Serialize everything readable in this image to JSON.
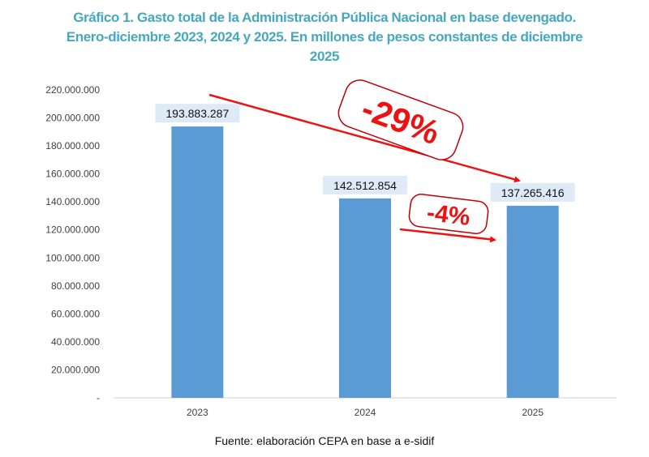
{
  "chart_data": {
    "type": "bar",
    "title_lines": [
      "Gráfico 1. Gasto total de la Administración Pública Nacional en base devengado.",
      "Enero-diciembre 2023, 2024 y 2025. En millones de pesos constantes de diciembre",
      "2025"
    ],
    "categories": [
      "2023",
      "2024",
      "2025"
    ],
    "values": [
      193883287,
      142512854,
      137265416
    ],
    "data_labels": [
      "193.883.287",
      "142.512.854",
      "137.265.416"
    ],
    "ylim": [
      0,
      220000000
    ],
    "yticks": [
      0,
      20000000,
      40000000,
      60000000,
      80000000,
      100000000,
      120000000,
      140000000,
      160000000,
      180000000,
      200000000,
      220000000
    ],
    "ytick_labels": [
      "-",
      "20.000.000",
      "40.000.000",
      "60.000.000",
      "80.000.000",
      "100.000.000",
      "120.000.000",
      "140.000.000",
      "160.000.000",
      "180.000.000",
      "200.000.000",
      "220.000.000"
    ],
    "grid": false,
    "bar_color": "#5b9bd5",
    "label_bg_color": "#deebf7",
    "annotations": [
      {
        "text": "-29%",
        "from": "2023",
        "to": "2025",
        "color": "#ee1111"
      },
      {
        "text": "-4%",
        "from": "2024",
        "to": "2025",
        "color": "#ee1111"
      }
    ],
    "source": "Fuente: elaboración CEPA en base a e-sidif"
  }
}
